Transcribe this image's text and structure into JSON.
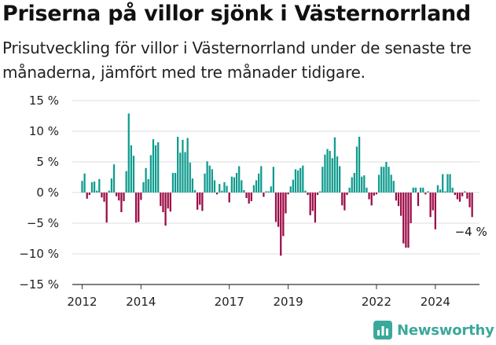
{
  "title": "Priserna på villor sjönk i Västernorrland",
  "subtitle": "Prisutveckling för villor i Västernorrland under de senaste tre månaderna, jämfört med tre månader tidigare.",
  "brand": {
    "name": "Newsworthy",
    "icon": "chart-bars-icon",
    "color": "#3aa99b"
  },
  "colors": {
    "positive": "#0f9b8e",
    "negative": "#9b0a45",
    "grid": "#dddddd",
    "axis": "#333333"
  },
  "chart_data": {
    "type": "bar",
    "title": "Priserna på villor sjönk i Västernorrland",
    "xlabel": "",
    "ylabel": "",
    "ylim": [
      -15,
      15
    ],
    "xlim": [
      "2011-09",
      "2025-07"
    ],
    "grid": true,
    "legend": "none",
    "y_ticks": [
      "15 %",
      "10 %",
      "5 %",
      "0 %",
      "−5 %",
      "−10 %",
      "−15 %"
    ],
    "y_tick_values": [
      15,
      10,
      5,
      0,
      -5,
      -10,
      -15
    ],
    "x_ticks": [
      {
        "label": "2012",
        "date": "2012-01"
      },
      {
        "label": "2014",
        "date": "2014-01"
      },
      {
        "label": "2017",
        "date": "2017-01"
      },
      {
        "label": "2019",
        "date": "2019-01"
      },
      {
        "label": "2022",
        "date": "2022-01"
      },
      {
        "label": "2024",
        "date": "2024-01"
      }
    ],
    "annotation": {
      "label": "−4 %",
      "date": "2025-04",
      "value": -4
    },
    "series": [
      {
        "values": [
          {
            "date": "2012-01",
            "value": 1.9
          },
          {
            "date": "2012-02",
            "value": 3.1
          },
          {
            "date": "2012-03",
            "value": -1.0
          },
          {
            "date": "2012-04",
            "value": -0.4
          },
          {
            "date": "2012-05",
            "value": 1.7
          },
          {
            "date": "2012-06",
            "value": 1.8
          },
          {
            "date": "2012-07",
            "value": 0.3
          },
          {
            "date": "2012-08",
            "value": 2.2
          },
          {
            "date": "2012-09",
            "value": -0.8
          },
          {
            "date": "2012-10",
            "value": -1.5
          },
          {
            "date": "2012-11",
            "value": -4.9
          },
          {
            "date": "2012-12",
            "value": 0.3
          },
          {
            "date": "2013-01",
            "value": 2.3
          },
          {
            "date": "2013-02",
            "value": 4.6
          },
          {
            "date": "2013-03",
            "value": -0.6
          },
          {
            "date": "2013-04",
            "value": -1.3
          },
          {
            "date": "2013-05",
            "value": -3.2
          },
          {
            "date": "2013-06",
            "value": -1.4
          },
          {
            "date": "2013-07",
            "value": 3.5
          },
          {
            "date": "2013-08",
            "value": 12.9
          },
          {
            "date": "2013-09",
            "value": 7.7
          },
          {
            "date": "2013-10",
            "value": 6.0
          },
          {
            "date": "2013-11",
            "value": -4.9
          },
          {
            "date": "2013-12",
            "value": -4.8
          },
          {
            "date": "2014-01",
            "value": -1.2
          },
          {
            "date": "2014-02",
            "value": 1.7
          },
          {
            "date": "2014-03",
            "value": 4.0
          },
          {
            "date": "2014-04",
            "value": 2.2
          },
          {
            "date": "2014-05",
            "value": 6.1
          },
          {
            "date": "2014-06",
            "value": 8.7
          },
          {
            "date": "2014-07",
            "value": 7.7
          },
          {
            "date": "2014-08",
            "value": 8.2
          },
          {
            "date": "2014-09",
            "value": -2.2
          },
          {
            "date": "2014-10",
            "value": -3.2
          },
          {
            "date": "2014-11",
            "value": -5.4
          },
          {
            "date": "2014-12",
            "value": -2.6
          },
          {
            "date": "2015-01",
            "value": -3.1
          },
          {
            "date": "2015-02",
            "value": 3.2
          },
          {
            "date": "2015-03",
            "value": 3.2
          },
          {
            "date": "2015-04",
            "value": 9.1
          },
          {
            "date": "2015-05",
            "value": 6.5
          },
          {
            "date": "2015-06",
            "value": 8.6
          },
          {
            "date": "2015-07",
            "value": 6.6
          },
          {
            "date": "2015-08",
            "value": 8.9
          },
          {
            "date": "2015-09",
            "value": 4.9
          },
          {
            "date": "2015-10",
            "value": 2.3
          },
          {
            "date": "2015-11",
            "value": 0.4
          },
          {
            "date": "2015-12",
            "value": -2.8
          },
          {
            "date": "2016-01",
            "value": -2.0
          },
          {
            "date": "2016-02",
            "value": -3.0
          },
          {
            "date": "2016-03",
            "value": 3.1
          },
          {
            "date": "2016-04",
            "value": 5.1
          },
          {
            "date": "2016-05",
            "value": 4.4
          },
          {
            "date": "2016-06",
            "value": 3.8
          },
          {
            "date": "2016-07",
            "value": 2.0
          },
          {
            "date": "2016-08",
            "value": -0.3
          },
          {
            "date": "2016-09",
            "value": 1.4
          },
          {
            "date": "2016-10",
            "value": 0.3
          },
          {
            "date": "2016-11",
            "value": 1.7
          },
          {
            "date": "2016-12",
            "value": 1.1
          },
          {
            "date": "2017-01",
            "value": -1.6
          },
          {
            "date": "2017-02",
            "value": 2.6
          },
          {
            "date": "2017-03",
            "value": 2.5
          },
          {
            "date": "2017-04",
            "value": 3.2
          },
          {
            "date": "2017-05",
            "value": 4.3
          },
          {
            "date": "2017-06",
            "value": 2.0
          },
          {
            "date": "2017-07",
            "value": 0.4
          },
          {
            "date": "2017-08",
            "value": -0.9
          },
          {
            "date": "2017-09",
            "value": -1.8
          },
          {
            "date": "2017-10",
            "value": -1.4
          },
          {
            "date": "2017-11",
            "value": 1.2
          },
          {
            "date": "2017-12",
            "value": 2.0
          },
          {
            "date": "2018-01",
            "value": 3.1
          },
          {
            "date": "2018-02",
            "value": 4.3
          },
          {
            "date": "2018-03",
            "value": -0.7
          },
          {
            "date": "2018-04",
            "value": 0.2
          },
          {
            "date": "2018-05",
            "value": 0.2
          },
          {
            "date": "2018-06",
            "value": 1.0
          },
          {
            "date": "2018-07",
            "value": 4.2
          },
          {
            "date": "2018-08",
            "value": -4.8
          },
          {
            "date": "2018-09",
            "value": -5.6
          },
          {
            "date": "2018-10",
            "value": -10.3
          },
          {
            "date": "2018-11",
            "value": -7.1
          },
          {
            "date": "2018-12",
            "value": -3.4
          },
          {
            "date": "2019-01",
            "value": -0.3
          },
          {
            "date": "2019-02",
            "value": 1.0
          },
          {
            "date": "2019-03",
            "value": 2.1
          },
          {
            "date": "2019-04",
            "value": 3.8
          },
          {
            "date": "2019-05",
            "value": 3.6
          },
          {
            "date": "2019-06",
            "value": 4.0
          },
          {
            "date": "2019-07",
            "value": 4.4
          },
          {
            "date": "2019-08",
            "value": 0.3
          },
          {
            "date": "2019-09",
            "value": -0.4
          },
          {
            "date": "2019-10",
            "value": -3.7
          },
          {
            "date": "2019-11",
            "value": -3.0
          },
          {
            "date": "2019-12",
            "value": -4.9
          },
          {
            "date": "2020-01",
            "value": -0.4
          },
          {
            "date": "2020-02",
            "value": 0.2
          },
          {
            "date": "2020-03",
            "value": 4.2
          },
          {
            "date": "2020-04",
            "value": 6.2
          },
          {
            "date": "2020-05",
            "value": 7.1
          },
          {
            "date": "2020-06",
            "value": 6.8
          },
          {
            "date": "2020-07",
            "value": 5.6
          },
          {
            "date": "2020-08",
            "value": 9.0
          },
          {
            "date": "2020-09",
            "value": 5.9
          },
          {
            "date": "2020-10",
            "value": 4.3
          },
          {
            "date": "2020-11",
            "value": -2.1
          },
          {
            "date": "2020-12",
            "value": -2.9
          },
          {
            "date": "2021-01",
            "value": -0.4
          },
          {
            "date": "2021-02",
            "value": 0.8
          },
          {
            "date": "2021-03",
            "value": 2.5
          },
          {
            "date": "2021-04",
            "value": 3.2
          },
          {
            "date": "2021-05",
            "value": 7.5
          },
          {
            "date": "2021-06",
            "value": 9.1
          },
          {
            "date": "2021-07",
            "value": 2.6
          },
          {
            "date": "2021-08",
            "value": 2.8
          },
          {
            "date": "2021-09",
            "value": 0.8
          },
          {
            "date": "2021-10",
            "value": -1.1
          },
          {
            "date": "2021-11",
            "value": -2.1
          },
          {
            "date": "2021-12",
            "value": -0.5
          },
          {
            "date": "2022-01",
            "value": -0.3
          },
          {
            "date": "2022-02",
            "value": 2.9
          },
          {
            "date": "2022-03",
            "value": 4.2
          },
          {
            "date": "2022-04",
            "value": 4.2
          },
          {
            "date": "2022-05",
            "value": 5.0
          },
          {
            "date": "2022-06",
            "value": 4.2
          },
          {
            "date": "2022-07",
            "value": 2.9
          },
          {
            "date": "2022-08",
            "value": 1.9
          },
          {
            "date": "2022-09",
            "value": -1.3
          },
          {
            "date": "2022-10",
            "value": -2.2
          },
          {
            "date": "2022-11",
            "value": -3.8
          },
          {
            "date": "2022-12",
            "value": -8.3
          },
          {
            "date": "2023-01",
            "value": -9.0
          },
          {
            "date": "2023-02",
            "value": -9.0
          },
          {
            "date": "2023-03",
            "value": -5.0
          },
          {
            "date": "2023-04",
            "value": 0.8
          },
          {
            "date": "2023-05",
            "value": 0.8
          },
          {
            "date": "2023-06",
            "value": -2.2
          },
          {
            "date": "2023-07",
            "value": 0.8
          },
          {
            "date": "2023-08",
            "value": 0.8
          },
          {
            "date": "2023-09",
            "value": -0.3
          },
          {
            "date": "2023-10",
            "value": 0.2
          },
          {
            "date": "2023-11",
            "value": -4.0
          },
          {
            "date": "2023-12",
            "value": -2.9
          },
          {
            "date": "2024-01",
            "value": -6.0
          },
          {
            "date": "2024-02",
            "value": 1.2
          },
          {
            "date": "2024-03",
            "value": 0.5
          },
          {
            "date": "2024-04",
            "value": 3.0
          },
          {
            "date": "2024-05",
            "value": 0.2
          },
          {
            "date": "2024-06",
            "value": 3.0
          },
          {
            "date": "2024-07",
            "value": 3.0
          },
          {
            "date": "2024-08",
            "value": 0.8
          },
          {
            "date": "2024-09",
            "value": -0.4
          },
          {
            "date": "2024-10",
            "value": -1.1
          },
          {
            "date": "2024-11",
            "value": -1.5
          },
          {
            "date": "2024-12",
            "value": -0.6
          },
          {
            "date": "2025-01",
            "value": 0.2
          },
          {
            "date": "2025-02",
            "value": -1.0
          },
          {
            "date": "2025-03",
            "value": -2.4
          },
          {
            "date": "2025-04",
            "value": -4.0
          }
        ]
      }
    ]
  }
}
